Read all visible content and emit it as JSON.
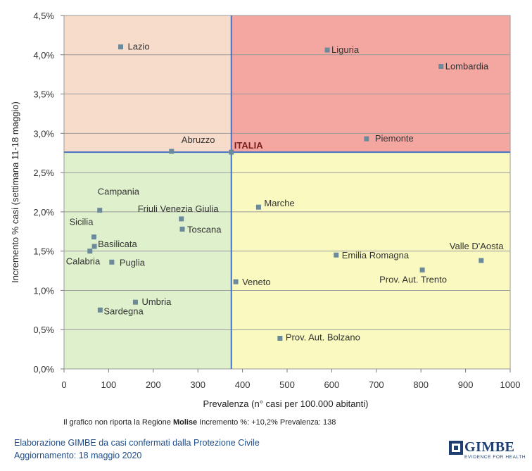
{
  "chart_data": {
    "type": "scatter",
    "xlabel": "Prevalenza  (n° casi per 100.000 abitanti)",
    "ylabel": "Incremento  %  casi (settimana 11-18 maggio)",
    "xlim": [
      0,
      1000
    ],
    "ylim": [
      0,
      4.5
    ],
    "x_ticks": [
      "0",
      "100",
      "200",
      "300",
      "400",
      "500",
      "600",
      "700",
      "800",
      "900",
      "1000"
    ],
    "y_ticks": [
      "0,0%",
      "0,5%",
      "1,0%",
      "1,5%",
      "2,0%",
      "2,5%",
      "3,0%",
      "3,5%",
      "4,0%",
      "4,5%"
    ],
    "reference": {
      "label": "ITALIA",
      "x": 375,
      "y": 2.76
    },
    "quadrant_colors": {
      "top_left": "#f8dccb",
      "top_right": "#f4a6a0",
      "bottom_left": "#dff0cc",
      "bottom_right": "#fafac0"
    },
    "point_color": "#6b8a9a",
    "line_color": "#4472c4",
    "points": [
      {
        "label": "Lazio",
        "x": 127,
        "y": 4.1
      },
      {
        "label": "Liguria",
        "x": 590,
        "y": 4.06
      },
      {
        "label": "Lombardia",
        "x": 845,
        "y": 3.85
      },
      {
        "label": "Abruzzo",
        "x": 241,
        "y": 2.77
      },
      {
        "label": "Piemonte",
        "x": 678,
        "y": 2.93
      },
      {
        "label": "Campania",
        "x": 80,
        "y": 2.02
      },
      {
        "label": "Friuli Venezia Giulia",
        "x": 263,
        "y": 1.91
      },
      {
        "label": "Marche",
        "x": 436,
        "y": 2.06
      },
      {
        "label": "Toscana",
        "x": 265,
        "y": 1.78
      },
      {
        "label": "Sicilia",
        "x": 67,
        "y": 1.68
      },
      {
        "label": "Basilicata",
        "x": 68,
        "y": 1.56
      },
      {
        "label": "Calabria",
        "x": 58,
        "y": 1.5
      },
      {
        "label": "Puglia",
        "x": 107,
        "y": 1.36
      },
      {
        "label": "Emilia Romagna",
        "x": 610,
        "y": 1.45
      },
      {
        "label": "Valle D'Aosta",
        "x": 935,
        "y": 1.38
      },
      {
        "label": "Prov. Aut. Trento",
        "x": 803,
        "y": 1.26
      },
      {
        "label": "Veneto",
        "x": 385,
        "y": 1.11
      },
      {
        "label": "Umbria",
        "x": 160,
        "y": 0.85
      },
      {
        "label": "Sardegna",
        "x": 81,
        "y": 0.75
      },
      {
        "label": "Prov. Aut. Bolzano",
        "x": 484,
        "y": 0.39
      }
    ]
  },
  "note": {
    "prefix": "Il grafico non riporta la Regione ",
    "region": "Molise",
    "suffix": " Incremento %: +10,2% Prevalenza: 138"
  },
  "footer": {
    "line1": "Elaborazione GIMBE da casi confermati dalla Protezione Civile",
    "line2": "Aggiornamento: 18 maggio 2020"
  },
  "logo": {
    "word": "GIMBE",
    "tagline": "EVIDENCE FOR HEALTH"
  }
}
